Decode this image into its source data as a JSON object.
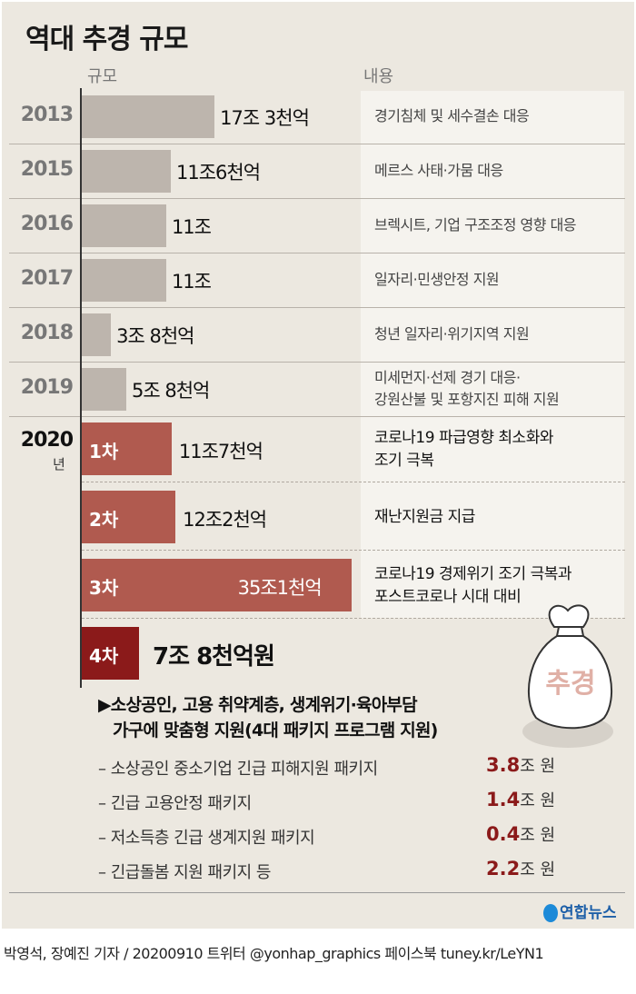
{
  "title": "역대 추경 규모",
  "column_headers": {
    "scale": "규모",
    "content": "내용"
  },
  "chart_data": {
    "type": "bar",
    "title": "역대 추경 규모",
    "unit": "조 원",
    "colors": {
      "past": "#bdb5ad",
      "covid": "#b05a4f",
      "latest": "#8b1a1a"
    },
    "past": [
      {
        "year": "2013",
        "value": 17.3,
        "label": "17조 3천억",
        "desc": [
          "경기침체 및 세수결손 대응"
        ]
      },
      {
        "year": "2015",
        "value": 11.6,
        "label": "11조6천억",
        "desc": [
          "메르스 사태·가뭄 대응"
        ]
      },
      {
        "year": "2016",
        "value": 11.0,
        "label": "11조",
        "desc": [
          "브렉시트, 기업 구조조정 영향 대응"
        ]
      },
      {
        "year": "2017",
        "value": 11.0,
        "label": "11조",
        "desc": [
          "일자리·민생안정 지원"
        ]
      },
      {
        "year": "2018",
        "value": 3.8,
        "label": "3조 8천억",
        "desc": [
          "청년 일자리·위기지역 지원"
        ]
      },
      {
        "year": "2019",
        "value": 5.8,
        "label": "5조 8천억",
        "desc": [
          "미세먼지·선제 경기 대응·",
          "강원산불 및 포항지진 피해 지원"
        ]
      }
    ],
    "year_2020": {
      "year": "2020",
      "suffix": "년"
    },
    "rounds_2020": [
      {
        "round": "1차",
        "value": 11.7,
        "label": "11조7천억",
        "desc": [
          "코로나19 파급영향 최소화와",
          "조기 극복"
        ]
      },
      {
        "round": "2차",
        "value": 12.2,
        "label": "12조2천억",
        "desc": [
          "재난지원금 지급"
        ]
      },
      {
        "round": "3차",
        "value": 35.1,
        "label": "35조1천억",
        "desc": [
          "코로나19 경제위기 조기 극복과",
          "포스트코로나 시대 대비"
        ]
      },
      {
        "round": "4차",
        "value": 7.8,
        "label": "7조 8천억원",
        "desc": []
      }
    ]
  },
  "bag_label": "추경",
  "package": {
    "heading": [
      "▶소상공인, 고용 취약계층, 생계위기·육아부담",
      "가구에 맞춤형 지원(4대 패키지 프로그램 지원)"
    ],
    "items": [
      {
        "name": "– 소상공인 중소기업 긴급 피해지원 패키지",
        "value": "3.8",
        "unit": "조 원"
      },
      {
        "name": "– 긴급 고용안정 패키지",
        "value": "1.4",
        "unit": "조 원"
      },
      {
        "name": "– 저소득층 긴급 생계지원 패키지",
        "value": "0.4",
        "unit": "조 원"
      },
      {
        "name": "– 긴급돌봄 지원 패키지 등",
        "value": "2.2",
        "unit": "조 원"
      }
    ]
  },
  "logo": "연합뉴스",
  "footer": "박영석, 장예진 기자 / 20200910 트위터 @yonhap_graphics  페이스북 tuney.kr/LeYN1"
}
